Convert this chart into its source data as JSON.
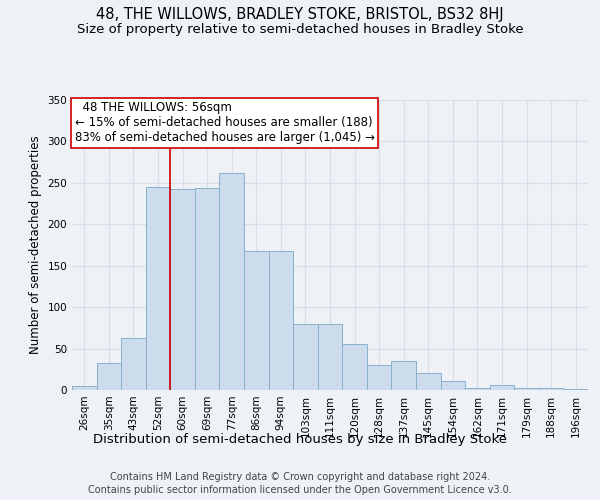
{
  "title": "48, THE WILLOWS, BRADLEY STOKE, BRISTOL, BS32 8HJ",
  "subtitle": "Size of property relative to semi-detached houses in Bradley Stoke",
  "xlabel": "Distribution of semi-detached houses by size in Bradley Stoke",
  "ylabel": "Number of semi-detached properties",
  "footer1": "Contains HM Land Registry data © Crown copyright and database right 2024.",
  "footer2": "Contains public sector information licensed under the Open Government Licence v3.0.",
  "bar_labels": [
    "26sqm",
    "35sqm",
    "43sqm",
    "52sqm",
    "60sqm",
    "69sqm",
    "77sqm",
    "86sqm",
    "94sqm",
    "103sqm",
    "111sqm",
    "120sqm",
    "128sqm",
    "137sqm",
    "145sqm",
    "154sqm",
    "162sqm",
    "171sqm",
    "179sqm",
    "188sqm",
    "196sqm"
  ],
  "bar_values": [
    5,
    33,
    63,
    245,
    242,
    244,
    262,
    168,
    168,
    80,
    80,
    55,
    30,
    35,
    20,
    11,
    3,
    6,
    3,
    3,
    1
  ],
  "bar_color": "#ccdcec",
  "bar_edge_color": "#8ab0cc",
  "vline_x": 3.5,
  "annotation_label": "48 THE WILLOWS: 56sqm",
  "pct_smaller": 15,
  "count_smaller": 188,
  "pct_larger": 83,
  "count_larger": "1,045",
  "vline_color": "#cc0000",
  "box_edge_color": "#cc0000",
  "ylim": [
    0,
    350
  ],
  "yticks": [
    0,
    50,
    100,
    150,
    200,
    250,
    300,
    350
  ],
  "bg_color": "#eef2f7",
  "title_fontsize": 10.5,
  "subtitle_fontsize": 9.5,
  "xlabel_fontsize": 9.5,
  "ylabel_fontsize": 8.5,
  "tick_fontsize": 7.5,
  "annot_fontsize": 8.5,
  "footer_fontsize": 7.0,
  "grid_color": "#d8dde8"
}
